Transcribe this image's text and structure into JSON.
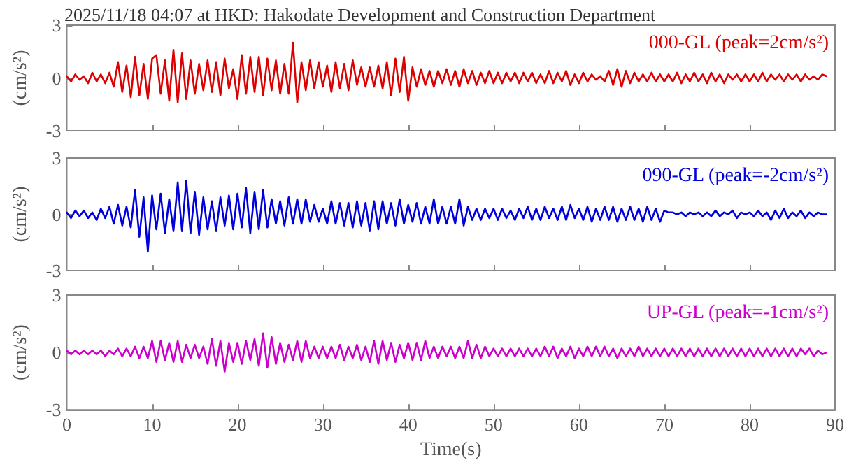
{
  "chart_data": [
    {
      "type": "line",
      "title": "2025/11/18 04:07 at HKD: Hakodate Development and Construction Department",
      "ylabel": "(cm/s²)",
      "xlim": [
        0,
        90
      ],
      "xticks": [
        0,
        10,
        20,
        30,
        40,
        50,
        60,
        70,
        80,
        90
      ],
      "ylim": [
        -3,
        3
      ],
      "yticks": [
        -3,
        0,
        3
      ],
      "tick_labels": "y",
      "legend": "top right",
      "grid": false,
      "marker": "none",
      "line_style": "solid",
      "x": [
        0,
        0.5,
        1,
        1.5,
        2,
        2.5,
        3,
        3.5,
        4,
        4.5,
        5,
        5.5,
        6,
        6.5,
        7,
        7.5,
        8,
        8.5,
        9,
        9.5,
        10,
        10.5,
        11,
        11.5,
        12,
        12.5,
        13,
        13.5,
        14,
        14.5,
        15,
        15.5,
        16,
        16.5,
        17,
        17.5,
        18,
        18.5,
        19,
        19.5,
        20,
        20.5,
        21,
        21.5,
        22,
        22.5,
        23,
        23.5,
        24,
        24.5,
        25,
        25.5,
        26,
        26.5,
        27,
        27.5,
        28,
        28.5,
        29,
        29.5,
        30,
        30.5,
        31,
        31.5,
        32,
        32.5,
        33,
        33.5,
        34,
        34.5,
        35,
        35.5,
        36,
        36.5,
        37,
        37.5,
        38,
        38.5,
        39,
        39.5,
        40,
        40.5,
        41,
        41.5,
        42,
        42.5,
        43,
        43.5,
        44,
        44.5,
        45,
        45.5,
        46,
        46.5,
        47,
        47.5,
        48,
        48.5,
        49,
        49.5,
        50,
        50.5,
        51,
        51.5,
        52,
        52.5,
        53,
        53.5,
        54,
        54.5,
        55,
        55.5,
        56,
        56.5,
        57,
        57.5,
        58,
        58.5,
        59,
        59.5,
        60,
        60.5,
        61,
        61.5,
        62,
        62.5,
        63,
        63.5,
        64,
        64.5,
        65,
        65.5,
        66,
        66.5,
        67,
        67.5,
        68,
        68.5,
        69,
        69.5,
        70,
        70.5,
        71,
        71.5,
        72,
        72.5,
        73,
        73.5,
        74,
        74.5,
        75,
        75.5,
        76,
        76.5,
        77,
        77.5,
        78,
        78.5,
        79,
        79.5,
        80,
        80.5,
        81,
        81.5,
        82,
        82.5,
        83,
        83.5,
        84,
        84.5,
        85,
        85.5,
        86,
        86.5,
        87,
        87.5,
        88,
        88.5,
        89
      ],
      "series": [
        {
          "name": "000-GL (peak=2cm/s²)",
          "color": "#dd0000",
          "values": [
            0.1,
            -0.2,
            0.2,
            -0.1,
            0.1,
            -0.3,
            0.3,
            -0.2,
            0.2,
            -0.3,
            0.3,
            -0.5,
            0.9,
            -0.8,
            0.7,
            -1.1,
            1.2,
            -1.0,
            0.8,
            -1.2,
            1.1,
            1.3,
            -0.9,
            1.0,
            -1.3,
            1.6,
            -1.4,
            1.4,
            -1.2,
            1.0,
            -0.9,
            0.8,
            -0.7,
            1.0,
            -0.8,
            0.9,
            -1.0,
            1.1,
            -0.6,
            0.5,
            -1.2,
            1.3,
            -0.9,
            1.2,
            -0.8,
            1.2,
            -1.0,
            1.1,
            -0.7,
            1.0,
            -0.9,
            0.8,
            -0.9,
            2.0,
            -1.4,
            0.9,
            -0.7,
            1.0,
            -0.6,
            0.9,
            -0.5,
            0.7,
            -0.8,
            0.9,
            -0.6,
            0.8,
            -0.7,
            1.0,
            -0.4,
            0.6,
            -0.5,
            0.6,
            -0.5,
            0.7,
            -0.6,
            0.9,
            -1.0,
            1.1,
            -0.8,
            1.2,
            -1.3,
            0.6,
            -0.5,
            0.5,
            -0.4,
            0.4,
            -0.5,
            0.4,
            -0.3,
            0.5,
            -0.4,
            0.4,
            -0.5,
            0.5,
            -0.3,
            0.4,
            -0.4,
            0.3,
            -0.3,
            0.4,
            -0.3,
            0.3,
            -0.3,
            0.3,
            -0.2,
            0.3,
            -0.3,
            0.3,
            -0.2,
            0.3,
            -0.3,
            0.2,
            -0.3,
            0.4,
            -0.3,
            0.3,
            -0.2,
            0.4,
            -0.4,
            0.2,
            -0.3,
            0.3,
            -0.2,
            0.2,
            -0.1,
            0.1,
            -0.2,
            0.4,
            -0.4,
            0.5,
            -0.5,
            0.4,
            -0.3,
            0.3,
            -0.2,
            0.2,
            -0.2,
            0.3,
            -0.2,
            0.2,
            -0.2,
            0.2,
            -0.2,
            0.3,
            -0.3,
            0.2,
            -0.2,
            0.3,
            -0.2,
            0.2,
            -0.3,
            0.3,
            -0.2,
            0.2,
            -0.3,
            0.2,
            -0.1,
            0.2,
            -0.2,
            0.2,
            -0.2,
            0.2,
            -0.2,
            0.3,
            -0.2,
            0.2,
            -0.1,
            0.2,
            -0.2,
            0.2,
            -0.1,
            0.2,
            -0.2,
            0.2,
            -0.1,
            0.1,
            -0.1,
            0.2,
            0.1
          ]
        }
      ]
    },
    {
      "type": "line",
      "ylabel": "(cm/s²)",
      "xlim": [
        0,
        90
      ],
      "xticks": [
        0,
        10,
        20,
        30,
        40,
        50,
        60,
        70,
        80,
        90
      ],
      "ylim": [
        -3,
        3
      ],
      "yticks": [
        -3,
        0,
        3
      ],
      "tick_labels": "y",
      "legend": "top right",
      "grid": false,
      "marker": "none",
      "line_style": "solid",
      "x": [
        0,
        0.5,
        1,
        1.5,
        2,
        2.5,
        3,
        3.5,
        4,
        4.5,
        5,
        5.5,
        6,
        6.5,
        7,
        7.5,
        8,
        8.5,
        9,
        9.5,
        10,
        10.5,
        11,
        11.5,
        12,
        12.5,
        13,
        13.5,
        14,
        14.5,
        15,
        15.5,
        16,
        16.5,
        17,
        17.5,
        18,
        18.5,
        19,
        19.5,
        20,
        20.5,
        21,
        21.5,
        22,
        22.5,
        23,
        23.5,
        24,
        24.5,
        25,
        25.5,
        26,
        26.5,
        27,
        27.5,
        28,
        28.5,
        29,
        29.5,
        30,
        30.5,
        31,
        31.5,
        32,
        32.5,
        33,
        33.5,
        34,
        34.5,
        35,
        35.5,
        36,
        36.5,
        37,
        37.5,
        38,
        38.5,
        39,
        39.5,
        40,
        40.5,
        41,
        41.5,
        42,
        42.5,
        43,
        43.5,
        44,
        44.5,
        45,
        45.5,
        46,
        46.5,
        47,
        47.5,
        48,
        48.5,
        49,
        49.5,
        50,
        50.5,
        51,
        51.5,
        52,
        52.5,
        53,
        53.5,
        54,
        54.5,
        55,
        55.5,
        56,
        56.5,
        57,
        57.5,
        58,
        58.5,
        59,
        59.5,
        60,
        60.5,
        61,
        61.5,
        62,
        62.5,
        63,
        63.5,
        64,
        64.5,
        65,
        65.5,
        66,
        66.5,
        67,
        67.5,
        68,
        68.5,
        69,
        69.5,
        70,
        70.5,
        71,
        71.5,
        72,
        72.5,
        73,
        73.5,
        74,
        74.5,
        75,
        75.5,
        76,
        76.5,
        77,
        77.5,
        78,
        78.5,
        79,
        79.5,
        80,
        80.5,
        81,
        81.5,
        82,
        82.5,
        83,
        83.5,
        84,
        84.5,
        85,
        85.5,
        86,
        86.5,
        87,
        87.5,
        88,
        88.5,
        89
      ],
      "series": [
        {
          "name": "090-GL (peak=-2cm/s²)",
          "color": "#0000dd",
          "values": [
            0.1,
            -0.2,
            0.2,
            -0.1,
            0.2,
            -0.2,
            0.1,
            -0.3,
            0.3,
            -0.2,
            0.4,
            -0.5,
            0.5,
            -0.6,
            0.4,
            -0.7,
            1.3,
            -1.2,
            0.9,
            -2.0,
            1.0,
            -0.8,
            1.1,
            -1.0,
            0.8,
            -0.9,
            1.7,
            -0.9,
            1.8,
            -1.0,
            1.2,
            -1.1,
            0.9,
            -0.8,
            0.7,
            -0.9,
            0.9,
            -0.6,
            1.0,
            -0.8,
            1.1,
            -0.7,
            1.4,
            -1.0,
            1.2,
            -0.8,
            1.3,
            -0.7,
            0.8,
            -0.5,
            0.7,
            -0.6,
            0.9,
            -0.5,
            0.8,
            -0.5,
            0.8,
            -0.4,
            0.5,
            -0.4,
            0.3,
            -0.5,
            0.7,
            -0.5,
            0.6,
            -0.6,
            0.6,
            -0.7,
            0.7,
            -0.6,
            0.6,
            -0.9,
            0.7,
            -0.8,
            0.7,
            -0.5,
            0.6,
            -0.6,
            0.8,
            -0.5,
            0.5,
            -0.4,
            0.6,
            -0.5,
            0.4,
            -0.5,
            0.8,
            -0.5,
            0.4,
            -0.5,
            0.4,
            -0.5,
            0.8,
            -0.6,
            0.4,
            -0.3,
            0.3,
            -0.3,
            0.3,
            -0.2,
            0.3,
            -0.3,
            0.3,
            -0.2,
            0.2,
            -0.3,
            0.3,
            -0.2,
            0.4,
            -0.3,
            0.3,
            -0.3,
            0.4,
            -0.2,
            0.3,
            -0.3,
            0.4,
            -0.3,
            0.5,
            -0.2,
            0.3,
            -0.3,
            0.4,
            -0.4,
            0.3,
            -0.3,
            0.4,
            -0.3,
            0.4,
            -0.4,
            0.3,
            -0.3,
            0.4,
            -0.3,
            0.3,
            -0.4,
            0.4,
            -0.3,
            0.3,
            -0.4,
            0.2,
            0.1,
            0.1,
            0.0,
            0.1,
            -0.1,
            0.1,
            0.0,
            0.1,
            -0.1,
            0.1,
            -0.1,
            0.2,
            -0.1,
            0.1,
            0.0,
            0.2,
            -0.2,
            0.1,
            0.0,
            0.1,
            -0.1,
            0.2,
            -0.1,
            0.1,
            -0.3,
            0.2,
            -0.2,
            0.3,
            -0.2,
            0.1,
            -0.1,
            0.2,
            -0.2,
            0.1,
            -0.1,
            0.1,
            0.0,
            0.0
          ]
        }
      ]
    },
    {
      "type": "line",
      "xlabel": "Time(s)",
      "ylabel": "(cm/s²)",
      "xlim": [
        0,
        90
      ],
      "xticks": [
        0,
        10,
        20,
        30,
        40,
        50,
        60,
        70,
        80,
        90
      ],
      "ylim": [
        -3,
        3
      ],
      "yticks": [
        -3,
        0,
        3
      ],
      "legend": "top right",
      "grid": false,
      "marker": "none",
      "line_style": "solid",
      "x": [
        0,
        0.5,
        1,
        1.5,
        2,
        2.5,
        3,
        3.5,
        4,
        4.5,
        5,
        5.5,
        6,
        6.5,
        7,
        7.5,
        8,
        8.5,
        9,
        9.5,
        10,
        10.5,
        11,
        11.5,
        12,
        12.5,
        13,
        13.5,
        14,
        14.5,
        15,
        15.5,
        16,
        16.5,
        17,
        17.5,
        18,
        18.5,
        19,
        19.5,
        20,
        20.5,
        21,
        21.5,
        22,
        22.5,
        23,
        23.5,
        24,
        24.5,
        25,
        25.5,
        26,
        26.5,
        27,
        27.5,
        28,
        28.5,
        29,
        29.5,
        30,
        30.5,
        31,
        31.5,
        32,
        32.5,
        33,
        33.5,
        34,
        34.5,
        35,
        35.5,
        36,
        36.5,
        37,
        37.5,
        38,
        38.5,
        39,
        39.5,
        40,
        40.5,
        41,
        41.5,
        42,
        42.5,
        43,
        43.5,
        44,
        44.5,
        45,
        45.5,
        46,
        46.5,
        47,
        47.5,
        48,
        48.5,
        49,
        49.5,
        50,
        50.5,
        51,
        51.5,
        52,
        52.5,
        53,
        53.5,
        54,
        54.5,
        55,
        55.5,
        56,
        56.5,
        57,
        57.5,
        58,
        58.5,
        59,
        59.5,
        60,
        60.5,
        61,
        61.5,
        62,
        62.5,
        63,
        63.5,
        64,
        64.5,
        65,
        65.5,
        66,
        66.5,
        67,
        67.5,
        68,
        68.5,
        69,
        69.5,
        70,
        70.5,
        71,
        71.5,
        72,
        72.5,
        73,
        73.5,
        74,
        74.5,
        75,
        75.5,
        76,
        76.5,
        77,
        77.5,
        78,
        78.5,
        79,
        79.5,
        80,
        80.5,
        81,
        81.5,
        82,
        82.5,
        83,
        83.5,
        84,
        84.5,
        85,
        85.5,
        86,
        86.5,
        87,
        87.5,
        88,
        88.5,
        89
      ],
      "series": [
        {
          "name": "UP-GL (peak=-1cm/s²)",
          "color": "#cc00cc",
          "values": [
            0.1,
            -0.1,
            0.1,
            -0.1,
            0.1,
            -0.1,
            0.1,
            -0.1,
            0.1,
            -0.2,
            0.1,
            -0.1,
            0.2,
            -0.2,
            0.2,
            -0.2,
            0.3,
            -0.3,
            0.3,
            -0.3,
            0.6,
            -0.5,
            0.6,
            -0.4,
            0.5,
            -0.5,
            0.6,
            -0.5,
            0.4,
            -0.3,
            0.4,
            -0.3,
            0.3,
            -0.6,
            0.7,
            -0.7,
            0.6,
            -1.0,
            0.5,
            -0.5,
            0.5,
            -0.6,
            0.6,
            -0.4,
            0.7,
            -0.7,
            1.0,
            -0.8,
            0.8,
            -0.6,
            0.5,
            -0.5,
            0.4,
            -0.4,
            0.6,
            -0.5,
            0.6,
            -0.3,
            0.3,
            -0.3,
            0.3,
            -0.3,
            0.3,
            -0.3,
            0.4,
            -0.4,
            0.3,
            -0.3,
            0.4,
            -0.4,
            0.3,
            -0.5,
            0.6,
            -0.6,
            0.6,
            -0.4,
            0.5,
            -0.5,
            0.4,
            -0.3,
            0.5,
            -0.4,
            0.5,
            -0.4,
            0.6,
            -0.3,
            0.3,
            -0.3,
            0.3,
            -0.2,
            0.3,
            -0.3,
            0.3,
            -0.3,
            0.6,
            -0.3,
            0.4,
            -0.3,
            0.3,
            -0.2,
            0.2,
            -0.2,
            0.2,
            -0.2,
            0.2,
            -0.2,
            0.2,
            -0.2,
            0.2,
            -0.2,
            0.2,
            -0.2,
            0.3,
            -0.2,
            0.3,
            -0.3,
            0.2,
            -0.2,
            0.3,
            -0.3,
            0.2,
            -0.2,
            0.3,
            -0.2,
            0.3,
            -0.2,
            0.3,
            -0.2,
            0.2,
            -0.3,
            0.2,
            -0.2,
            0.2,
            -0.2,
            0.3,
            -0.2,
            0.2,
            -0.2,
            0.2,
            -0.2,
            0.2,
            -0.2,
            0.2,
            -0.2,
            0.2,
            -0.2,
            0.2,
            -0.2,
            0.2,
            -0.2,
            0.2,
            -0.2,
            0.2,
            -0.2,
            0.2,
            -0.2,
            0.2,
            -0.2,
            0.2,
            -0.2,
            0.2,
            -0.2,
            0.2,
            -0.2,
            0.2,
            -0.2,
            0.2,
            -0.2,
            0.2,
            -0.2,
            0.2,
            -0.2,
            0.2,
            -0.1,
            0.2,
            -0.2,
            0.1,
            -0.1,
            0.0
          ]
        }
      ]
    }
  ]
}
